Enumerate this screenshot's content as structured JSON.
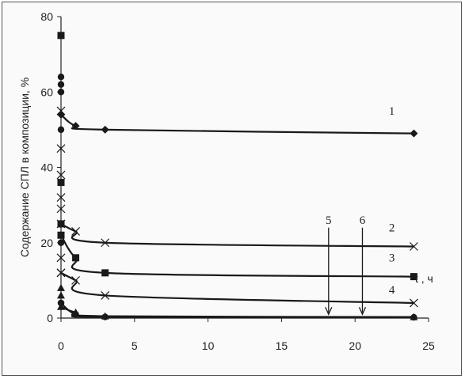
{
  "chart_data": {
    "type": "line",
    "ylabel": "Содержание СПЛ в композиции, %",
    "xlabel": "t , ч",
    "xlim": [
      0,
      25
    ],
    "ylim": [
      0,
      80
    ],
    "x_ticks": [
      0,
      5,
      10,
      15,
      20,
      25
    ],
    "y_ticks": [
      0,
      20,
      40,
      60,
      80
    ],
    "grid": false,
    "series": [
      {
        "name": "1",
        "marker": "diamond",
        "x": [
          0,
          1,
          3,
          24
        ],
        "y": [
          54,
          51,
          50,
          49
        ]
      },
      {
        "name": "2",
        "marker": "x",
        "x": [
          0,
          1,
          3,
          24
        ],
        "y": [
          25,
          23,
          20,
          19
        ]
      },
      {
        "name": "3",
        "marker": "square",
        "x": [
          0,
          1,
          3,
          24
        ],
        "y": [
          22,
          16,
          12,
          11
        ]
      },
      {
        "name": "4",
        "marker": "x",
        "x": [
          0,
          1,
          3,
          24
        ],
        "y": [
          12,
          10,
          6,
          4
        ]
      },
      {
        "name": "5",
        "marker": "circle",
        "x": [
          0,
          1,
          3,
          24
        ],
        "y": [
          4,
          1,
          0.3,
          0.2
        ]
      },
      {
        "name": "6",
        "marker": "triangle",
        "x": [
          0,
          1,
          3,
          24
        ],
        "y": [
          3,
          1.5,
          0.5,
          0.3
        ]
      }
    ],
    "initial_points": [
      {
        "marker": "square",
        "y": [
          75,
          36,
          25
        ]
      },
      {
        "marker": "circle",
        "y": [
          64,
          62,
          60,
          50,
          20
        ]
      },
      {
        "marker": "x",
        "y": [
          55,
          45,
          38,
          32,
          29,
          16,
          12
        ]
      },
      {
        "marker": "triangle",
        "y": [
          8,
          6
        ]
      },
      {
        "marker": "circle",
        "y": [
          4
        ]
      }
    ],
    "curve_labels": [
      {
        "text": "1",
        "x": 22.5,
        "y": 54
      },
      {
        "text": "2",
        "x": 22.5,
        "y": 23
      },
      {
        "text": "3",
        "x": 22.5,
        "y": 15
      },
      {
        "text": "4",
        "x": 22.5,
        "y": 6.5
      },
      {
        "text": "5",
        "x": 18.2,
        "y": 25
      },
      {
        "text": "6",
        "x": 20.5,
        "y": 25
      }
    ],
    "arrows": [
      {
        "from_x": 18.2,
        "from_y": 24,
        "to_x": 18.2,
        "to_y": 1
      },
      {
        "from_x": 20.5,
        "from_y": 24,
        "to_x": 20.5,
        "to_y": 1
      }
    ]
  }
}
